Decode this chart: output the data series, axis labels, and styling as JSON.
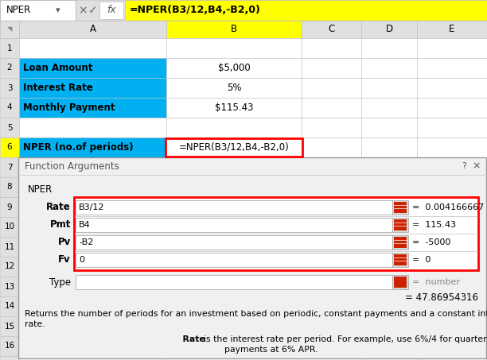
{
  "formula_bar_text": "=NPER(B3/12,B4,-B2,0)",
  "formula_bar_cell": "NPER",
  "cyan_bg": "#00B0F0",
  "yellow_bg": "#FFFF00",
  "white_bg": "#FFFFFF",
  "dialog_bg": "#F0F0F0",
  "grid_color": "#C0C0C0",
  "header_bg": "#E0E0E0",
  "red_border": "#FF0000",
  "dialog_title": "Function Arguments",
  "dialog_func": "NPER",
  "dialog_args": [
    {
      "label": "Rate",
      "input": "B3/12",
      "result": "0.004166667"
    },
    {
      "label": "Pmt",
      "input": "B4",
      "result": "115.43"
    },
    {
      "label": "Pv",
      "input": "-B2",
      "result": "-5000"
    },
    {
      "label": "Fv",
      "input": "0",
      "result": "0"
    }
  ],
  "dialog_type_label": "Type",
  "dialog_result": "= 47.86954316",
  "dialog_desc1": "Returns the number of periods for an investment based on periodic, constant payments and a constant interest\nrate.",
  "figsize": [
    6.12,
    4.53
  ],
  "dpi": 100
}
